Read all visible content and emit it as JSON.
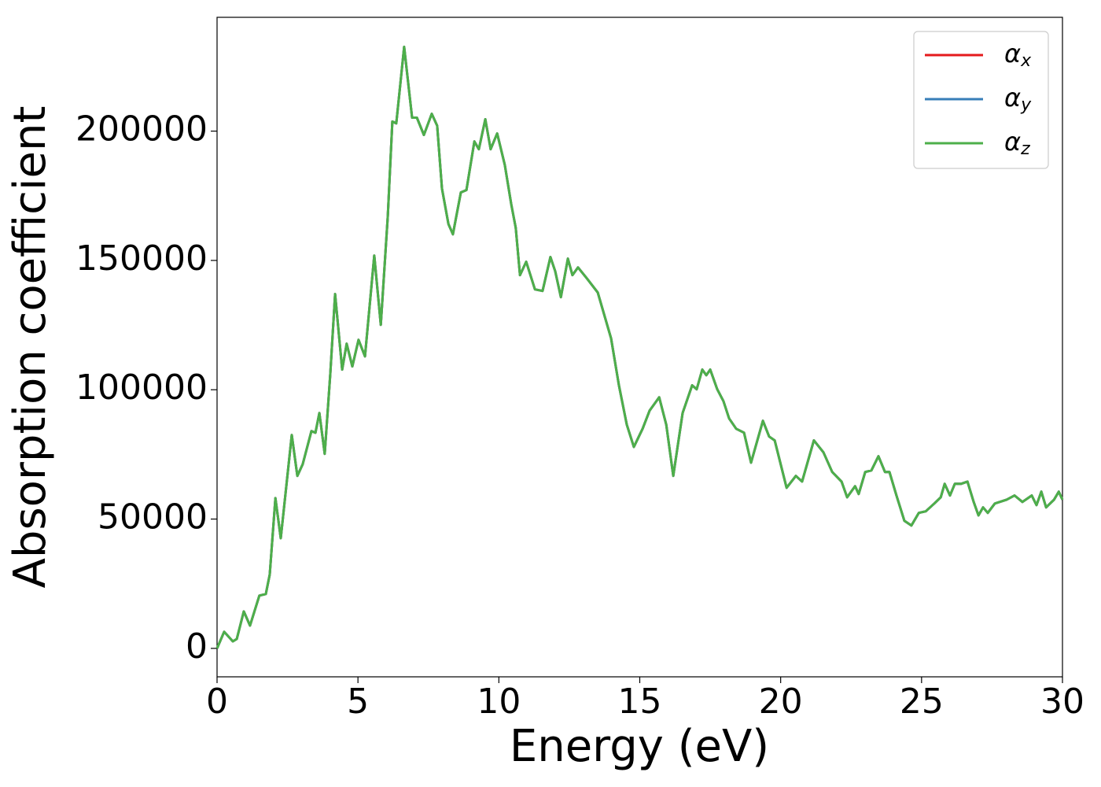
{
  "chart_data": {
    "type": "line",
    "xlabel": "Energy (eV)",
    "ylabel": "Absorption coefficient",
    "x": [
      0,
      0.25,
      0.56,
      0.7,
      0.95,
      1.17,
      1.5,
      1.73,
      1.87,
      2.07,
      2.26,
      2.65,
      2.85,
      3.04,
      3.35,
      3.49,
      3.63,
      3.82,
      4.02,
      4.19,
      4.44,
      4.6,
      4.8,
      5.02,
      5.25,
      5.58,
      5.81,
      6.06,
      6.22,
      6.36,
      6.64,
      6.92,
      7.09,
      7.34,
      7.62,
      7.81,
      7.98,
      8.21,
      8.37,
      8.65,
      8.85,
      9.13,
      9.29,
      9.52,
      9.71,
      9.94,
      10.21,
      10.44,
      10.6,
      10.75,
      10.97,
      11.28,
      11.55,
      11.83,
      12.0,
      12.2,
      12.45,
      12.61,
      12.81,
      13.12,
      13.51,
      13.98,
      14.26,
      14.54,
      14.79,
      15.1,
      15.35,
      15.69,
      15.94,
      16.19,
      16.52,
      16.86,
      17.02,
      17.22,
      17.36,
      17.5,
      17.75,
      17.97,
      18.17,
      18.42,
      18.7,
      18.95,
      19.37,
      19.59,
      19.79,
      20.21,
      20.54,
      20.76,
      21.18,
      21.52,
      21.83,
      22.16,
      22.36,
      22.64,
      22.77,
      23.0,
      23.22,
      23.47,
      23.7,
      23.86,
      24.11,
      24.39,
      24.64,
      24.9,
      25.15,
      25.45,
      25.68,
      25.82,
      26.01,
      26.18,
      26.4,
      26.63,
      26.85,
      27.02,
      27.18,
      27.35,
      27.6,
      28.02,
      28.3,
      28.58,
      28.91,
      29.08,
      29.25,
      29.42,
      29.7,
      29.87,
      30.0
    ],
    "series": [
      {
        "name": "αx",
        "color": "#e41a1c",
        "values": [
          0,
          6400,
          2700,
          3650,
          14300,
          8800,
          20400,
          21000,
          28600,
          58100,
          42600,
          82500,
          66700,
          71200,
          84000,
          83400,
          91000,
          75200,
          106200,
          137000,
          107800,
          117800,
          109000,
          119300,
          112900,
          151900,
          125100,
          167100,
          203700,
          203000,
          232600,
          205200,
          205200,
          198500,
          206700,
          202100,
          177800,
          164100,
          160100,
          176300,
          177200,
          196000,
          193000,
          204600,
          193000,
          199100,
          186900,
          171700,
          162600,
          144300,
          149500,
          138800,
          138200,
          151300,
          145800,
          135800,
          150700,
          144300,
          147300,
          143100,
          137600,
          119900,
          101700,
          86500,
          77900,
          84900,
          91900,
          97100,
          86500,
          66700,
          91000,
          101700,
          100200,
          107800,
          105600,
          107800,
          100200,
          95600,
          88900,
          84900,
          83400,
          71800,
          88000,
          81900,
          80400,
          62100,
          66700,
          64500,
          80400,
          75800,
          68200,
          64500,
          58400,
          62700,
          59700,
          68200,
          68800,
          74300,
          68200,
          68200,
          59100,
          49300,
          47500,
          52400,
          53000,
          56000,
          58400,
          63600,
          59100,
          63600,
          63600,
          64500,
          56600,
          51400,
          54500,
          52400,
          56000,
          57500,
          59100,
          56600,
          59100,
          55400,
          60600,
          54500,
          57500,
          60600,
          57500
        ]
      },
      {
        "name": "αy",
        "color": "#377eb8",
        "values": [
          0,
          6400,
          2700,
          3650,
          14300,
          8800,
          20400,
          21000,
          28600,
          58100,
          42600,
          82500,
          66700,
          71200,
          84000,
          83400,
          91000,
          75200,
          106200,
          137000,
          107800,
          117800,
          109000,
          119300,
          112900,
          151900,
          125100,
          167100,
          203700,
          203000,
          232600,
          205200,
          205200,
          198500,
          206700,
          202100,
          177800,
          164100,
          160100,
          176300,
          177200,
          196000,
          193000,
          204600,
          193000,
          199100,
          186900,
          171700,
          162600,
          144300,
          149500,
          138800,
          138200,
          151300,
          145800,
          135800,
          150700,
          144300,
          147300,
          143100,
          137600,
          119900,
          101700,
          86500,
          77900,
          84900,
          91900,
          97100,
          86500,
          66700,
          91000,
          101700,
          100200,
          107800,
          105600,
          107800,
          100200,
          95600,
          88900,
          84900,
          83400,
          71800,
          88000,
          81900,
          80400,
          62100,
          66700,
          64500,
          80400,
          75800,
          68200,
          64500,
          58400,
          62700,
          59700,
          68200,
          68800,
          74300,
          68200,
          68200,
          59100,
          49300,
          47500,
          52400,
          53000,
          56000,
          58400,
          63600,
          59100,
          63600,
          63600,
          64500,
          56600,
          51400,
          54500,
          52400,
          56000,
          57500,
          59100,
          56600,
          59100,
          55400,
          60600,
          54500,
          57500,
          60600,
          57500
        ]
      },
      {
        "name": "αz",
        "color": "#4daf4a",
        "values": [
          0,
          6400,
          2700,
          3650,
          14300,
          8800,
          20400,
          21000,
          28600,
          58100,
          42600,
          82500,
          66700,
          71200,
          84000,
          83400,
          91000,
          75200,
          106200,
          137000,
          107800,
          117800,
          109000,
          119300,
          112900,
          151900,
          125100,
          167100,
          203700,
          203000,
          232600,
          205200,
          205200,
          198500,
          206700,
          202100,
          177800,
          164100,
          160100,
          176300,
          177200,
          196000,
          193000,
          204600,
          193000,
          199100,
          186900,
          171700,
          162600,
          144300,
          149500,
          138800,
          138200,
          151300,
          145800,
          135800,
          150700,
          144300,
          147300,
          143100,
          137600,
          119900,
          101700,
          86500,
          77900,
          84900,
          91900,
          97100,
          86500,
          66700,
          91000,
          101700,
          100200,
          107800,
          105600,
          107800,
          100200,
          95600,
          88900,
          84900,
          83400,
          71800,
          88000,
          81900,
          80400,
          62100,
          66700,
          64500,
          80400,
          75800,
          68200,
          64500,
          58400,
          62700,
          59700,
          68200,
          68800,
          74300,
          68200,
          68200,
          59100,
          49300,
          47500,
          52400,
          53000,
          56000,
          58400,
          63600,
          59100,
          63600,
          63600,
          64500,
          56600,
          51400,
          54500,
          52400,
          56000,
          57500,
          59100,
          56600,
          59100,
          55400,
          60600,
          54500,
          57500,
          60600,
          57500
        ]
      }
    ],
    "xlim": [
      0,
      30
    ],
    "xticks": [
      0,
      5,
      10,
      15,
      20,
      25,
      30
    ],
    "ylim": [
      -11000,
      244000
    ],
    "yticks": [
      0,
      50000,
      100000,
      150000,
      200000
    ],
    "legend": "upper right"
  }
}
